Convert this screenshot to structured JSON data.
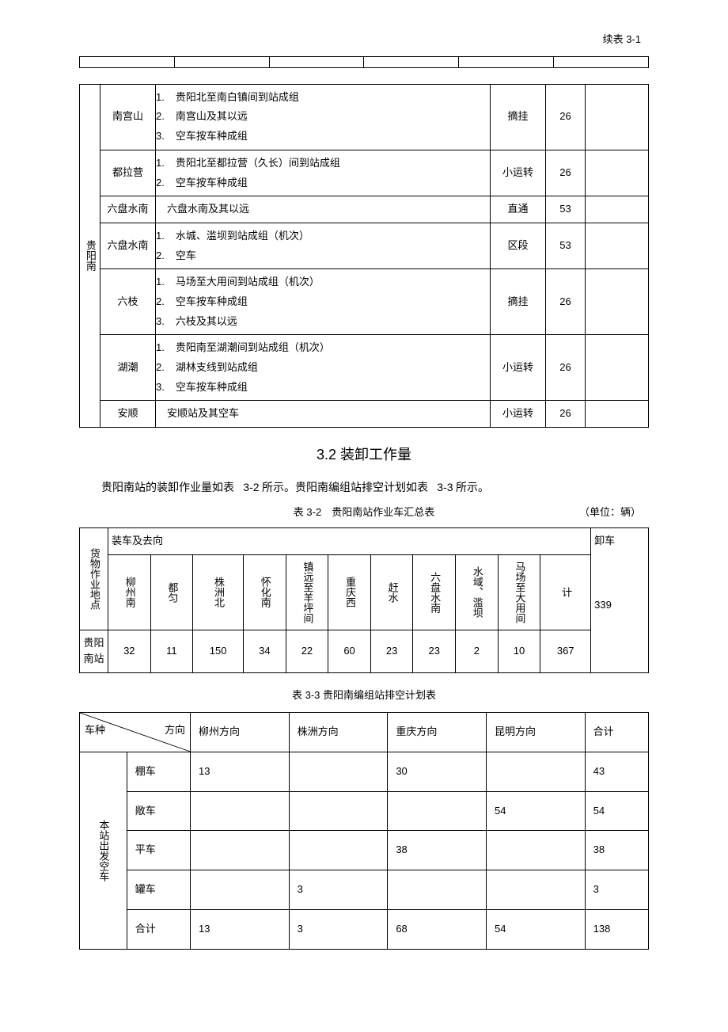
{
  "cont_label": "续表 3-1",
  "table1": {
    "origin": "贵阳南",
    "rows": [
      {
        "dest": "南宫山",
        "items": [
          {
            "n": "1.",
            "t": "贵阳北至南白镇间到站成组"
          },
          {
            "n": "2.",
            "t": "南宫山及其以远"
          },
          {
            "n": "3.",
            "t": "空车按车种成组"
          }
        ],
        "type": "摘挂",
        "count": "26"
      },
      {
        "dest": "都拉营",
        "items": [
          {
            "n": "1.",
            "t": "贵阳北至都拉营（久长）间到站成组"
          },
          {
            "n": "2.",
            "t": "空车按车种成组"
          }
        ],
        "type": "小运转",
        "count": "26"
      },
      {
        "dest": "六盘水南",
        "items": [
          {
            "n": "",
            "t": "六盘水南及其以远"
          }
        ],
        "type": "直通",
        "count": "53"
      },
      {
        "dest": "六盘水南",
        "items": [
          {
            "n": "1.",
            "t": "水城、滥坝到站成组（机次）"
          },
          {
            "n": "2.",
            "t": "空车"
          }
        ],
        "type": "区段",
        "count": "53"
      },
      {
        "dest": "六枝",
        "items": [
          {
            "n": "1.",
            "t": "马场至大用间到站成组（机次）"
          },
          {
            "n": "2.",
            "t": "空车按车种成组"
          },
          {
            "n": "3.",
            "t": "六枝及其以远"
          }
        ],
        "type": "摘挂",
        "count": "26"
      },
      {
        "dest": "湖潮",
        "items": [
          {
            "n": "1.",
            "t": "贵阳南至湖潮间到站成组（机次）"
          },
          {
            "n": "2.",
            "t": "湖林支线到站成组"
          },
          {
            "n": "3.",
            "t": "空车按车种成组"
          }
        ],
        "type": "小运转",
        "count": "26"
      },
      {
        "dest": "安顺",
        "items": [
          {
            "n": "",
            "t": "安顺站及其空车"
          }
        ],
        "type": "小运转",
        "count": "26"
      }
    ]
  },
  "section_title": "3.2  装卸工作量",
  "body_text_parts": {
    "a": "贵阳南站的装卸作业量如表",
    "b": "3-2",
    "c": " 所示。贵阳南编组站排空计划如表",
    "d": "3-3",
    "e": " 所示。"
  },
  "table2_caption": {
    "num": "表 3-2",
    "title": "贵阳南站作业车汇总表",
    "unit": "（单位：辆）"
  },
  "table2": {
    "row_header_label": "货物作业地点",
    "load_group_label": "装车及去向",
    "unload_label": "卸车",
    "cols": [
      "柳州南",
      "都匀",
      "株洲北",
      "怀化南",
      "镇远至羊坪间",
      "重庆西",
      "赶水",
      "六盘水南",
      "水域、滥坝",
      "马场至大用间",
      "计"
    ],
    "row_label": "贵阳南站",
    "values": [
      "32",
      "11",
      "150",
      "34",
      "22",
      "60",
      "23",
      "23",
      "2",
      "10",
      "367"
    ],
    "unload_value": "339"
  },
  "table3_caption": "表 3-3  贵阳南编组站排空计划表",
  "table3": {
    "diag_a": "车种",
    "diag_b": "方向",
    "cols": [
      "柳州方向",
      "株洲方向",
      "重庆方向",
      "昆明方向",
      "合计"
    ],
    "group_label": "本站出发空车",
    "rows": [
      {
        "label": "棚车",
        "cells": [
          "13",
          "",
          "30",
          "",
          "43"
        ]
      },
      {
        "label": "敞车",
        "cells": [
          "",
          "",
          "",
          "54",
          "54"
        ]
      },
      {
        "label": "平车",
        "cells": [
          "",
          "",
          "38",
          "",
          "38"
        ]
      },
      {
        "label": "罐车",
        "cells": [
          "",
          "3",
          "",
          "",
          "3"
        ]
      },
      {
        "label": "合计",
        "cells": [
          "13",
          "3",
          "68",
          "54",
          "138"
        ]
      }
    ]
  }
}
